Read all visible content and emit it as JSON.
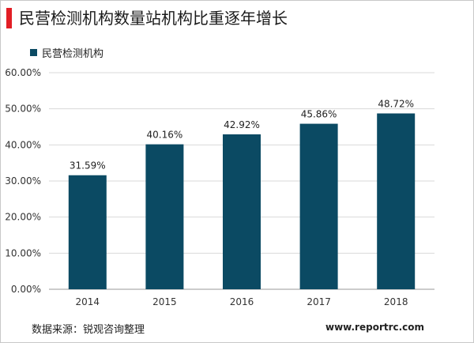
{
  "title": "民营检测机构数量站机构比重逐年增长",
  "colors": {
    "accent": "#e21e25",
    "bar": "#0b4a63"
  },
  "source": "数据来源：锐观咨询整理",
  "website": "www.reportrc.com",
  "chart_data": {
    "type": "bar",
    "categories": [
      "2014",
      "2015",
      "2016",
      "2017",
      "2018"
    ],
    "series": [
      {
        "name": "民营检测机构",
        "values": [
          31.59,
          40.16,
          42.92,
          45.86,
          48.72
        ]
      }
    ],
    "data_labels": [
      "31.59%",
      "40.16%",
      "42.92%",
      "45.86%",
      "48.72%"
    ],
    "yticks": [
      "0.00%",
      "10.00%",
      "20.00%",
      "30.00%",
      "40.00%",
      "50.00%",
      "60.00%"
    ],
    "ylim": [
      0,
      60
    ],
    "grid": true,
    "legend_position": "top-left"
  }
}
